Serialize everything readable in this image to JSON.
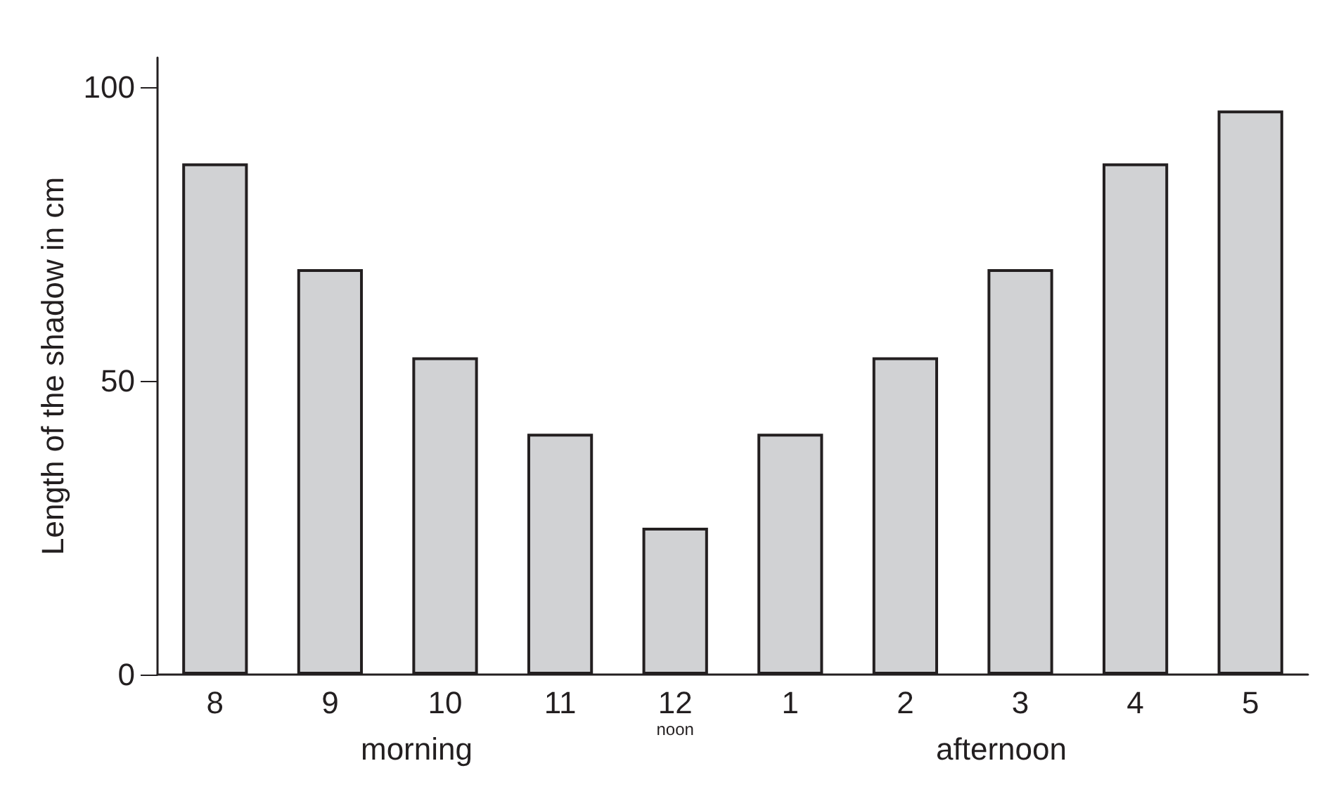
{
  "chart_data": {
    "type": "bar",
    "ylabel": "Length of the shadow in cm",
    "categories": [
      "8",
      "9",
      "10",
      "11",
      "12\nnoon",
      "1",
      "2",
      "3",
      "4",
      "5"
    ],
    "values": [
      87,
      69,
      54,
      41,
      25,
      41,
      54,
      69,
      87,
      96
    ],
    "color": "#d1d2d4",
    "ylim": [
      0,
      105
    ],
    "yticks": [
      0,
      50,
      100
    ],
    "grid": false,
    "annotations": [
      "morning",
      "afternoon"
    ]
  }
}
